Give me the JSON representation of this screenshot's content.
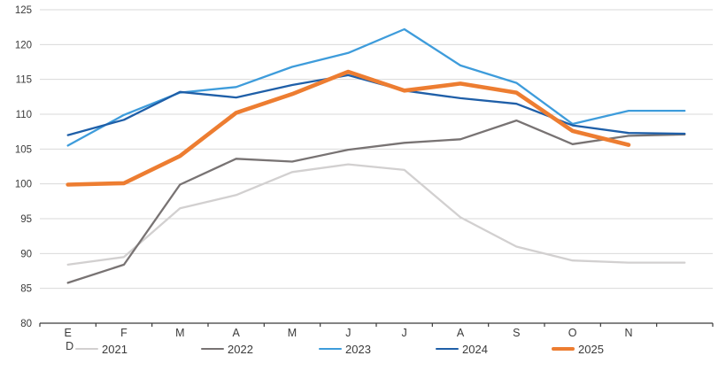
{
  "chart_data": {
    "type": "line",
    "title": "",
    "categories": [
      "E",
      "F",
      "M",
      "A",
      "M",
      "J",
      "J",
      "A",
      "S",
      "O",
      "N",
      "D"
    ],
    "x_tick_labels": [
      "E",
      "F",
      "M",
      "A",
      "M",
      "J",
      "J",
      "A",
      "S",
      "O",
      "N",
      ""
    ],
    "x_first_label_line2": "D",
    "y_axis": {
      "min": 80,
      "max": 125,
      "step": 5,
      "tick_labels": [
        "80",
        "85",
        "90",
        "95",
        "100",
        "105",
        "110",
        "115",
        "120",
        "125"
      ]
    },
    "grid": true,
    "legend_position": "bottom",
    "series": [
      {
        "name": "2021",
        "color": "#D2D0D0",
        "stroke_width": 2.3,
        "values": [
          88.4,
          89.5,
          96.5,
          98.4,
          101.7,
          102.8,
          102.0,
          95.2,
          91.0,
          89.0,
          88.7,
          88.7
        ]
      },
      {
        "name": "2022",
        "color": "#787373",
        "stroke_width": 2.3,
        "values": [
          85.8,
          88.4,
          99.9,
          103.6,
          103.2,
          104.9,
          105.9,
          106.4,
          109.1,
          105.7,
          106.9,
          107.1
        ]
      },
      {
        "name": "2023",
        "color": "#3E9CDB",
        "stroke_width": 2.3,
        "values": [
          105.5,
          109.9,
          113.1,
          113.9,
          116.8,
          118.8,
          122.2,
          117.0,
          114.5,
          108.6,
          110.5,
          110.5
        ]
      },
      {
        "name": "2024",
        "color": "#1F5FA8",
        "stroke_width": 2.3,
        "values": [
          107.0,
          109.2,
          113.2,
          112.4,
          114.2,
          115.6,
          113.4,
          112.3,
          111.5,
          108.4,
          107.3,
          107.2
        ]
      },
      {
        "name": "2025",
        "color": "#ED7D31",
        "stroke_width": 4.6,
        "values": [
          99.9,
          100.1,
          104.0,
          110.2,
          112.9,
          116.1,
          113.4,
          114.4,
          113.1,
          107.6,
          105.6
        ]
      }
    ],
    "colors": {
      "gridline": "#D9D9D9",
      "axis_line": "#3a3a3a",
      "tick_label": "#3a3a3a"
    }
  },
  "legend": {
    "items": [
      "2021",
      "2022",
      "2023",
      "2024",
      "2025"
    ]
  }
}
